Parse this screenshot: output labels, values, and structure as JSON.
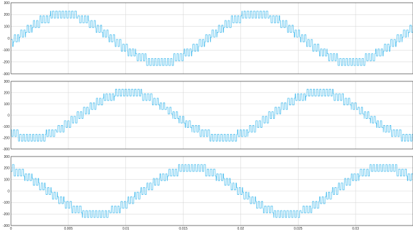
{
  "chart_data": [
    {
      "type": "line",
      "title": "",
      "xlabel": "",
      "ylabel": "",
      "xlim": [
        0,
        0.035
      ],
      "ylim": [
        -300,
        300
      ],
      "grid": true,
      "yticks": [
        300,
        200,
        100,
        0,
        -100,
        -200,
        -300
      ],
      "ytick_labels": [
        "300",
        "200",
        "100",
        "0",
        "-100",
        "-200",
        "-300"
      ],
      "xticks": [],
      "xtick_labels": [],
      "series": [
        {
          "amplitude": 200,
          "ripple": 30,
          "frequency_hz": 60,
          "phase_deg": -10,
          "color": "#4dbeee"
        }
      ]
    },
    {
      "type": "line",
      "title": "",
      "xlabel": "",
      "ylabel": "",
      "xlim": [
        0,
        0.035
      ],
      "ylim": [
        -300,
        300
      ],
      "grid": true,
      "yticks": [
        300,
        200,
        100,
        0,
        -100,
        -200,
        -300
      ],
      "ytick_labels": [
        "300",
        "200",
        "100",
        "0",
        "-100",
        "-200",
        "-300"
      ],
      "xticks": [],
      "xtick_labels": [],
      "series": [
        {
          "amplitude": 200,
          "ripple": 30,
          "frequency_hz": 60,
          "phase_deg": -130,
          "color": "#4dbeee"
        }
      ]
    },
    {
      "type": "line",
      "title": "",
      "xlabel": "",
      "ylabel": "",
      "xlim": [
        0,
        0.035
      ],
      "ylim": [
        -300,
        300
      ],
      "grid": true,
      "yticks": [
        300,
        200,
        100,
        0,
        -100,
        -200,
        -300
      ],
      "ytick_labels": [
        "300",
        "200",
        "100",
        "0",
        "-100",
        "-200",
        "-300"
      ],
      "xticks": [
        0,
        0.005,
        0.01,
        0.015,
        0.02,
        0.025,
        0.03
      ],
      "xtick_labels": [
        "0",
        "0.005",
        "0.01",
        "0.015",
        "0.02",
        "0.025",
        "0.03"
      ],
      "series": [
        {
          "amplitude": 200,
          "ripple": 30,
          "frequency_hz": 60,
          "phase_deg": 110,
          "color": "#4dbeee"
        }
      ]
    }
  ]
}
